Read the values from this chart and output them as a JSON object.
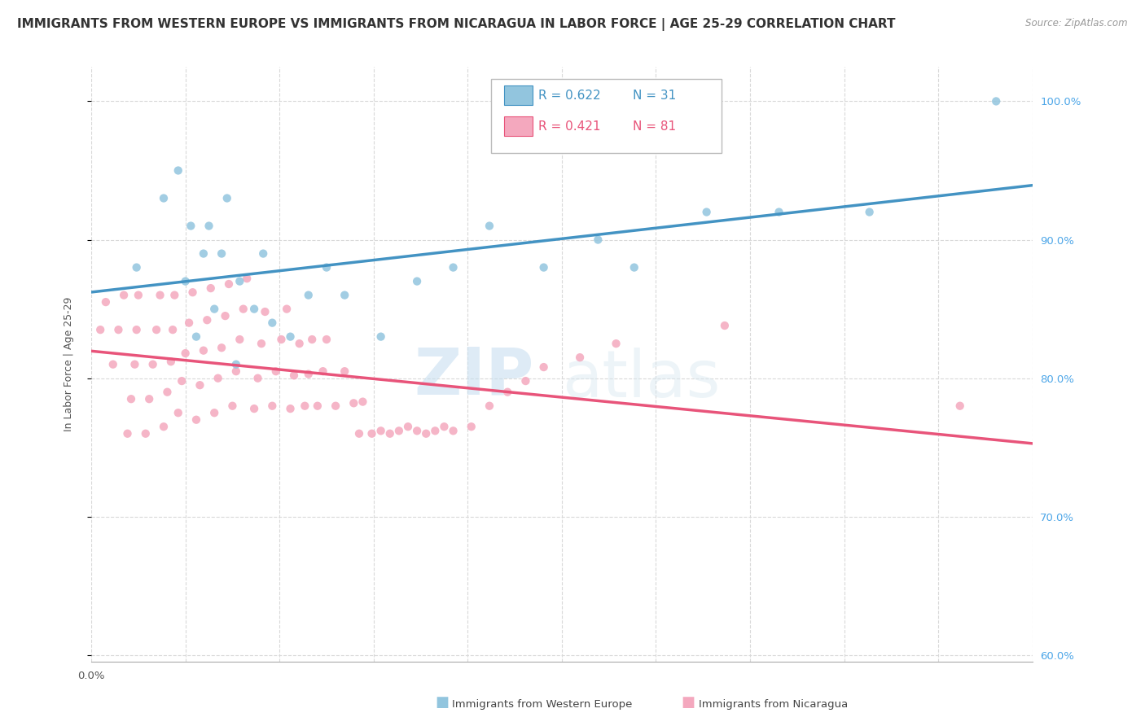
{
  "title": "IMMIGRANTS FROM WESTERN EUROPE VS IMMIGRANTS FROM NICARAGUA IN LABOR FORCE | AGE 25-29 CORRELATION CHART",
  "source": "Source: ZipAtlas.com",
  "ylabel": "In Labor Force | Age 25-29",
  "legend_label_blue": "Immigrants from Western Europe",
  "legend_label_pink": "Immigrants from Nicaragua",
  "r_blue": 0.622,
  "n_blue": 31,
  "r_pink": 0.421,
  "n_pink": 81,
  "blue_color": "#92c5de",
  "pink_color": "#f4a8be",
  "trendline_blue": "#4393c3",
  "trendline_pink": "#e8547a",
  "background_color": "#ffffff",
  "grid_color": "#d9d9d9",
  "xmin": 0.0,
  "xmax": 0.52,
  "ymin": 0.595,
  "ymax": 1.025,
  "blue_scatter_x": [
    0.025,
    0.04,
    0.048,
    0.052,
    0.055,
    0.058,
    0.062,
    0.065,
    0.068,
    0.072,
    0.075,
    0.08,
    0.082,
    0.09,
    0.095,
    0.1,
    0.11,
    0.12,
    0.13,
    0.14,
    0.16,
    0.18,
    0.2,
    0.22,
    0.25,
    0.28,
    0.3,
    0.34,
    0.38,
    0.43,
    0.5
  ],
  "blue_scatter_y": [
    0.88,
    0.93,
    0.95,
    0.87,
    0.91,
    0.83,
    0.89,
    0.91,
    0.85,
    0.89,
    0.93,
    0.81,
    0.87,
    0.85,
    0.89,
    0.84,
    0.83,
    0.86,
    0.88,
    0.86,
    0.83,
    0.87,
    0.88,
    0.91,
    0.88,
    0.9,
    0.88,
    0.92,
    0.92,
    0.92,
    1.0
  ],
  "pink_scatter_x": [
    0.005,
    0.008,
    0.012,
    0.015,
    0.018,
    0.02,
    0.022,
    0.024,
    0.025,
    0.026,
    0.03,
    0.032,
    0.034,
    0.036,
    0.038,
    0.04,
    0.042,
    0.044,
    0.045,
    0.046,
    0.048,
    0.05,
    0.052,
    0.054,
    0.056,
    0.058,
    0.06,
    0.062,
    0.064,
    0.066,
    0.068,
    0.07,
    0.072,
    0.074,
    0.076,
    0.078,
    0.08,
    0.082,
    0.084,
    0.086,
    0.09,
    0.092,
    0.094,
    0.096,
    0.1,
    0.102,
    0.105,
    0.108,
    0.11,
    0.112,
    0.115,
    0.118,
    0.12,
    0.122,
    0.125,
    0.128,
    0.13,
    0.135,
    0.14,
    0.145,
    0.148,
    0.15,
    0.155,
    0.16,
    0.165,
    0.17,
    0.175,
    0.18,
    0.185,
    0.19,
    0.195,
    0.2,
    0.21,
    0.22,
    0.23,
    0.24,
    0.25,
    0.27,
    0.29,
    0.35,
    0.48
  ],
  "pink_scatter_y": [
    0.835,
    0.855,
    0.81,
    0.835,
    0.86,
    0.76,
    0.785,
    0.81,
    0.835,
    0.86,
    0.76,
    0.785,
    0.81,
    0.835,
    0.86,
    0.765,
    0.79,
    0.812,
    0.835,
    0.86,
    0.775,
    0.798,
    0.818,
    0.84,
    0.862,
    0.77,
    0.795,
    0.82,
    0.842,
    0.865,
    0.775,
    0.8,
    0.822,
    0.845,
    0.868,
    0.78,
    0.805,
    0.828,
    0.85,
    0.872,
    0.778,
    0.8,
    0.825,
    0.848,
    0.78,
    0.805,
    0.828,
    0.85,
    0.778,
    0.802,
    0.825,
    0.78,
    0.803,
    0.828,
    0.78,
    0.805,
    0.828,
    0.78,
    0.805,
    0.782,
    0.76,
    0.783,
    0.76,
    0.762,
    0.76,
    0.762,
    0.765,
    0.762,
    0.76,
    0.762,
    0.765,
    0.762,
    0.765,
    0.78,
    0.79,
    0.798,
    0.808,
    0.815,
    0.825,
    0.838,
    0.78
  ],
  "watermark_zip": "ZIP",
  "watermark_atlas": "atlas",
  "title_fontsize": 11,
  "axis_label_fontsize": 9,
  "tick_fontsize": 9.5,
  "legend_fontsize": 11,
  "right_tick_color": "#4da6e8"
}
